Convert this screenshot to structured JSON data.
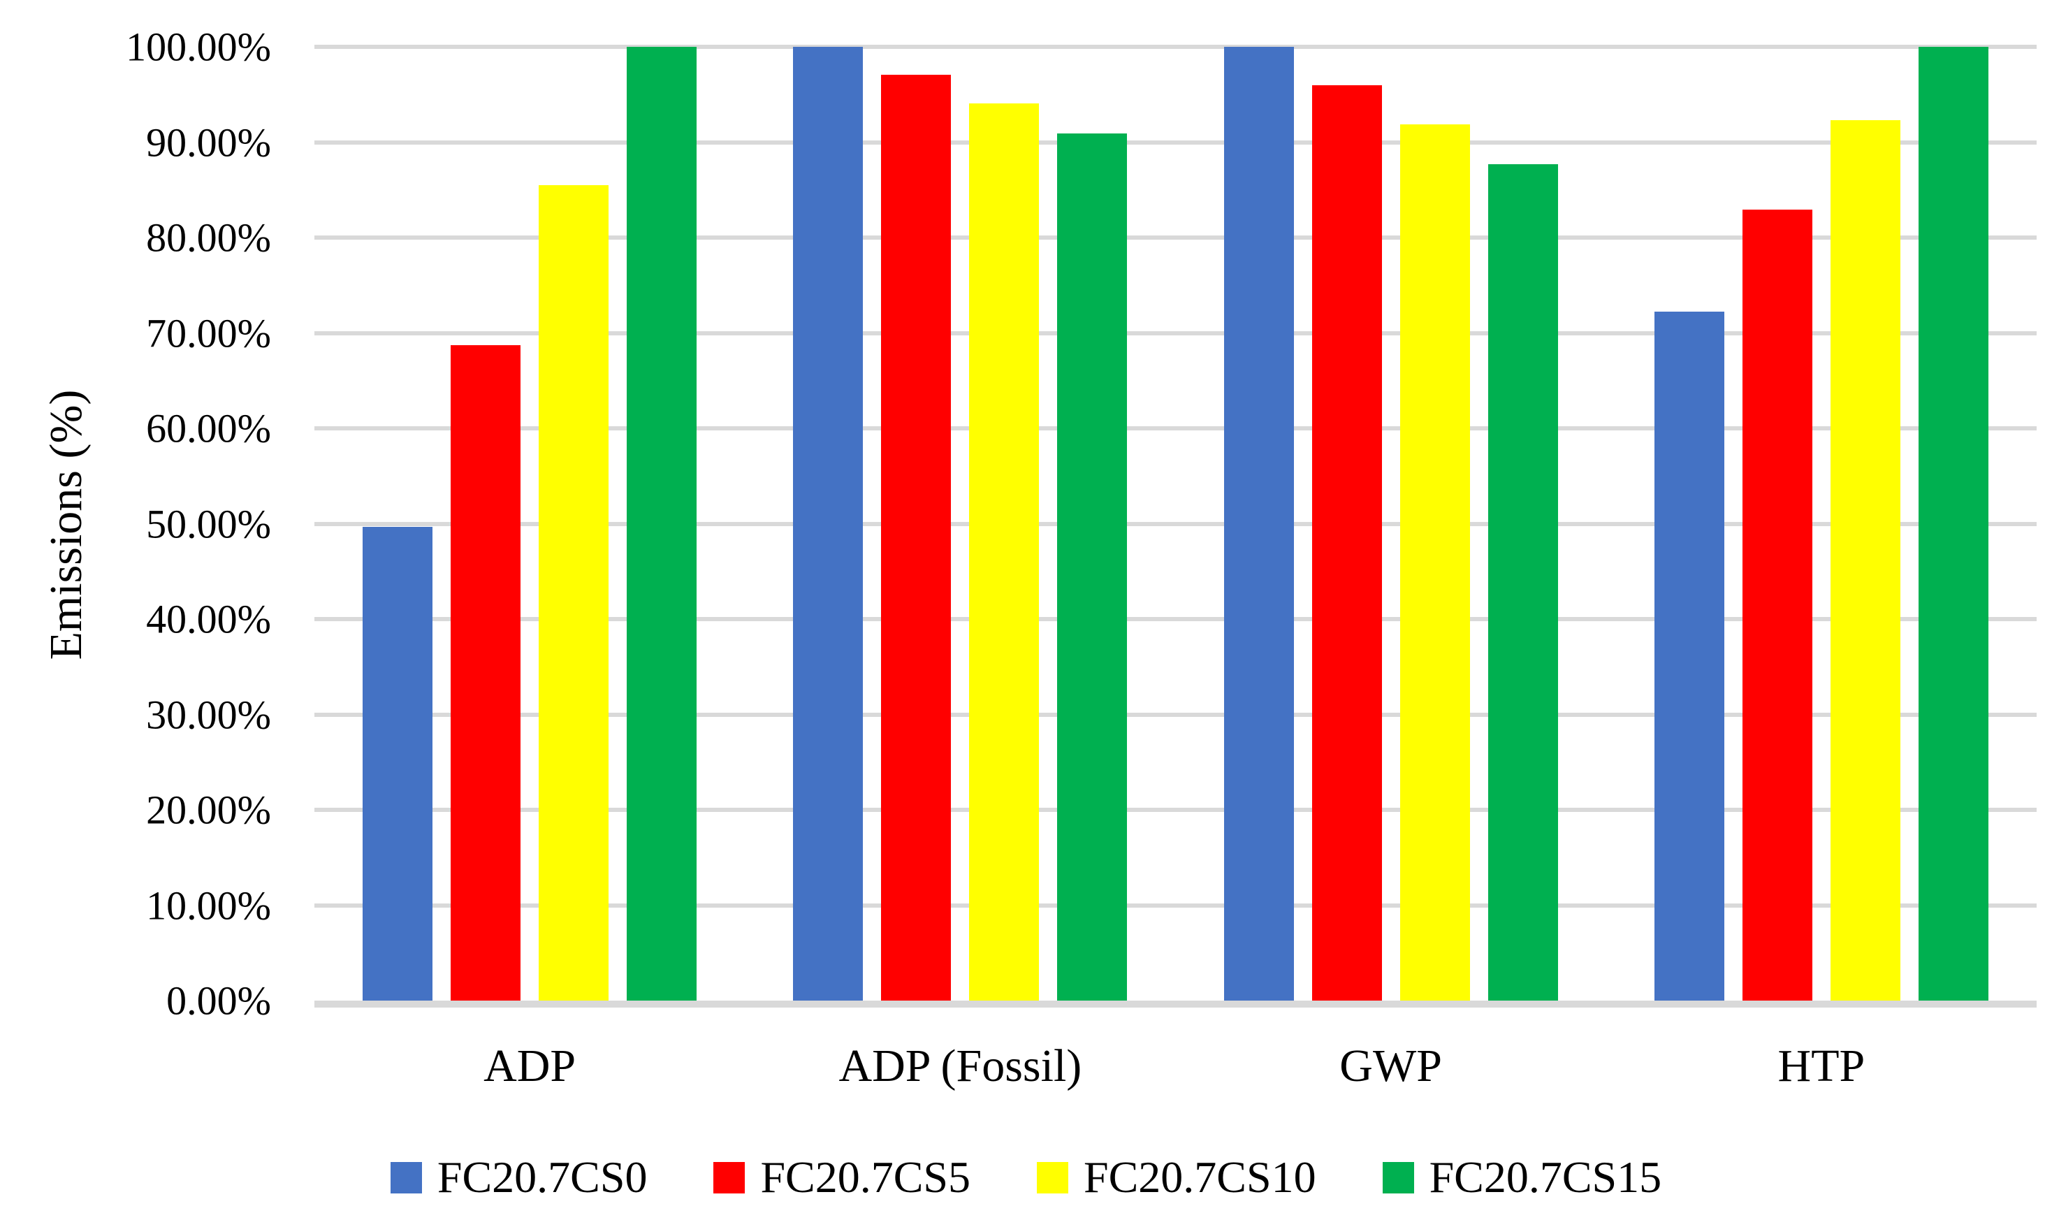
{
  "chart_data": {
    "type": "bar",
    "title": "",
    "xlabel": "",
    "ylabel": "Emissions (%)",
    "categories": [
      "ADP",
      "ADP (Fossil)",
      "GWP",
      "HTP"
    ],
    "series": [
      {
        "name": "FC20.7CS0",
        "color": "#4472C4",
        "values": [
          49.7,
          100.0,
          100.0,
          72.2
        ]
      },
      {
        "name": "FC20.7CS5",
        "color": "#FF0000",
        "values": [
          68.7,
          97.1,
          96.0,
          82.9
        ]
      },
      {
        "name": "FC20.7CS10",
        "color": "#FFFF00",
        "values": [
          85.5,
          94.1,
          91.9,
          92.3
        ]
      },
      {
        "name": "FC20.7CS15",
        "color": "#00B050",
        "values": [
          100.0,
          90.9,
          87.7,
          100.0
        ]
      }
    ],
    "ylim": [
      0,
      100
    ],
    "y_ticks": [
      "0.00%",
      "10.00%",
      "20.00%",
      "30.00%",
      "40.00%",
      "50.00%",
      "60.00%",
      "70.00%",
      "80.00%",
      "90.00%",
      "100.00%"
    ],
    "grid": "horizontal",
    "legend_position": "bottom",
    "gridline_color": "#D9D9D9",
    "axis_line_color": "#D9D9D9",
    "text_color": "#000000",
    "background_color": "#FFFFFF"
  }
}
